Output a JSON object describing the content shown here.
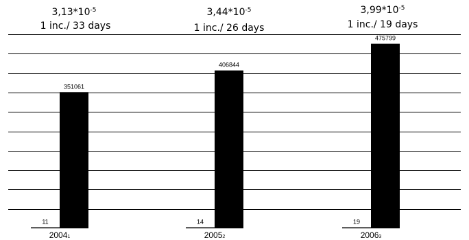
{
  "chart_data": {
    "type": "bar",
    "categories": [
      "2004",
      "2005",
      "2006"
    ],
    "category_suffixes": [
      "1",
      "2",
      "3"
    ],
    "header_rates": [
      {
        "mantissa": "3,13*10",
        "exponent": "-5",
        "frequency": "1 inc./ 33 days"
      },
      {
        "mantissa": "3,44*10",
        "exponent": "-5",
        "frequency": "1 inc./ 26 days"
      },
      {
        "mantissa": "3,99*10",
        "exponent": "-5",
        "frequency": "1 inc./ 19 days"
      }
    ],
    "series": [
      {
        "values": [
          11,
          14,
          19
        ],
        "labels": [
          "11",
          "14",
          "19"
        ]
      },
      {
        "values": [
          351061,
          406844,
          475799
        ],
        "labels": [
          "351061",
          "406844",
          "475799"
        ]
      }
    ],
    "ylim": [
      0,
      500000
    ],
    "grid": true,
    "colors": {
      "bars": "#000000",
      "grid": "#000000",
      "background": "#ffffff"
    }
  }
}
